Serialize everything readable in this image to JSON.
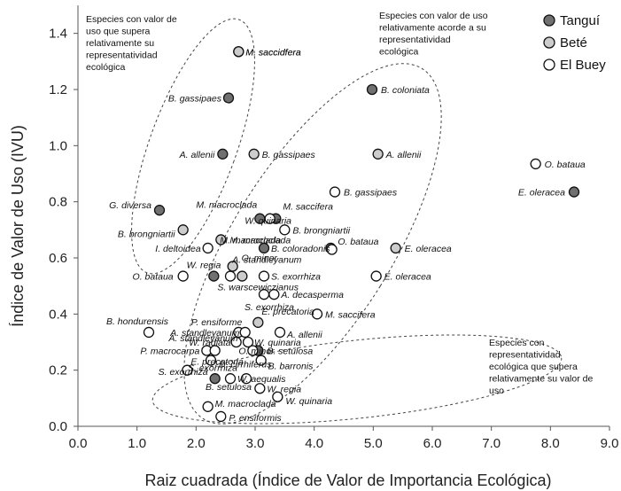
{
  "chart_data": {
    "type": "scatter",
    "xlabel": "Raiz cuadrada (Índice de Valor de Importancia Ecológica)",
    "ylabel": "Índice de Valor de Uso (IVU)",
    "xlim": [
      0,
      9
    ],
    "ylim": [
      0,
      1.5
    ],
    "x_ticks": [
      "0.0",
      "1.0",
      "2.0",
      "3.0",
      "4.0",
      "5.0",
      "6.0",
      "7.0",
      "8.0",
      "9.0"
    ],
    "y_ticks": [
      "0.0",
      "0.2",
      "0.4",
      "0.6",
      "0.8",
      "1.0",
      "1.2",
      "1.4"
    ],
    "grid": false,
    "legend_position": "top-right",
    "series": [
      {
        "name": "Tanguí",
        "color": "#707070",
        "points": [
          {
            "x": 2.72,
            "y": 1.335,
            "label": "M. saccidfera"
          },
          {
            "x": 2.55,
            "y": 1.17,
            "label": "B. gassipaes"
          },
          {
            "x": 4.98,
            "y": 1.2,
            "label": "B. coloniata"
          },
          {
            "x": 2.45,
            "y": 0.97,
            "label": "A. allenii"
          },
          {
            "x": 1.38,
            "y": 0.77,
            "label": "G. diversa"
          },
          {
            "x": 8.4,
            "y": 0.835,
            "label": "E. oleracea"
          },
          {
            "x": 3.08,
            "y": 0.74,
            "label": "M. macroclada"
          },
          {
            "x": 3.35,
            "y": 0.74,
            "label": "M. saccifera"
          },
          {
            "x": 3.15,
            "y": 0.635,
            "label": "B. coloradonis"
          },
          {
            "x": 4.28,
            "y": 0.635,
            "label": "O. bataua"
          },
          {
            "x": 2.3,
            "y": 0.535,
            "label": "W. regia"
          },
          {
            "x": 3.05,
            "y": 0.27,
            "label": "B. setulosa"
          },
          {
            "x": 2.32,
            "y": 0.17,
            "label": "S. exorrhiza"
          }
        ]
      },
      {
        "name": "Beté",
        "color": "#cccccc",
        "points": [
          {
            "x": 2.72,
            "y": 1.335,
            "label": "M. saccidfera"
          },
          {
            "x": 2.98,
            "y": 0.97,
            "label": "B. gassipaes"
          },
          {
            "x": 5.08,
            "y": 0.97,
            "label": "A. allenii"
          },
          {
            "x": 1.78,
            "y": 0.7,
            "label": "B. brongniartii"
          },
          {
            "x": 2.42,
            "y": 0.665,
            "label": "M. macroclada"
          },
          {
            "x": 2.62,
            "y": 0.57,
            "label": "O. minor"
          },
          {
            "x": 2.78,
            "y": 0.535,
            "label": "S. warscewiczianus"
          },
          {
            "x": 5.38,
            "y": 0.635,
            "label": "E. oleracea"
          },
          {
            "x": 3.05,
            "y": 0.37,
            "label": "E. precatoria"
          }
        ]
      },
      {
        "name": "El Buey",
        "color": "#ffffff",
        "points": [
          {
            "x": 4.35,
            "y": 0.835,
            "label": "B. gassipaes"
          },
          {
            "x": 7.75,
            "y": 0.935,
            "label": "O. bataua"
          },
          {
            "x": 3.25,
            "y": 0.74,
            "label": ""
          },
          {
            "x": 3.5,
            "y": 0.7,
            "label": "B. brongniartii"
          },
          {
            "x": 2.2,
            "y": 0.635,
            "label": "I. deltoidea"
          },
          {
            "x": 4.3,
            "y": 0.63,
            "label": ""
          },
          {
            "x": 1.78,
            "y": 0.535,
            "label": "O. bataua"
          },
          {
            "x": 2.58,
            "y": 0.535,
            "label": ""
          },
          {
            "x": 3.15,
            "y": 0.535,
            "label": "S. exorrhiza"
          },
          {
            "x": 5.05,
            "y": 0.535,
            "label": "E. oleracea"
          },
          {
            "x": 3.15,
            "y": 0.47,
            "label": "S. exorrhiza"
          },
          {
            "x": 3.32,
            "y": 0.47,
            "label": "A. decasperma"
          },
          {
            "x": 4.05,
            "y": 0.4,
            "label": "M. saccifera"
          },
          {
            "x": 1.2,
            "y": 0.335,
            "label": "B. hondurensis"
          },
          {
            "x": 2.72,
            "y": 0.335,
            "label": "P. ensiforme"
          },
          {
            "x": 2.83,
            "y": 0.335,
            "label": "A. standleyanum"
          },
          {
            "x": 3.42,
            "y": 0.335,
            "label": "A. allenii"
          },
          {
            "x": 2.68,
            "y": 0.3,
            "label": "W. radiata"
          },
          {
            "x": 2.88,
            "y": 0.3,
            "label": "W. quinaria"
          },
          {
            "x": 2.18,
            "y": 0.27,
            "label": "P. macrocarpa"
          },
          {
            "x": 2.32,
            "y": 0.27,
            "label": ""
          },
          {
            "x": 2.96,
            "y": 0.27,
            "label": "O. minor"
          },
          {
            "x": 2.25,
            "y": 0.235,
            "label": "D. cirrhiferus"
          },
          {
            "x": 3.1,
            "y": 0.235,
            "label": "B. barronis"
          },
          {
            "x": 1.85,
            "y": 0.2,
            "label": "E. precatoria"
          },
          {
            "x": 2.58,
            "y": 0.17,
            "label": "W. aequalis"
          },
          {
            "x": 2.85,
            "y": 0.17,
            "label": ""
          },
          {
            "x": 3.08,
            "y": 0.135,
            "label": "W. regia"
          },
          {
            "x": 3.38,
            "y": 0.105,
            "label": "W. quinaria"
          },
          {
            "x": 2.2,
            "y": 0.07,
            "label": "M. macroclada"
          },
          {
            "x": 2.42,
            "y": 0.035,
            "label": "P. ensiformis"
          }
        ]
      }
    ],
    "annotations": [
      {
        "text": [
          "Especies con valor de",
          "uso que supera",
          "relativamente  su",
          "representatividad",
          "ecológica"
        ]
      },
      {
        "text": [
          "Especies con valor de uso",
          "relativamente acorde a su",
          "representatividad",
          "ecológica"
        ]
      },
      {
        "text": [
          "Especies con",
          "representatividad",
          "ecológica que supera",
          "relativamente su valor de",
          "uso"
        ]
      }
    ],
    "extra_labels": [
      {
        "text": "W. quinaria",
        "x": 3.22,
        "y": 0.735
      },
      {
        "text": "A. standleyanum",
        "x": 3.2,
        "y": 0.595
      },
      {
        "text": "S. exorrhiza",
        "x": 2.28,
        "y": 0.21
      },
      {
        "text": "B. setulosa",
        "x": 2.55,
        "y": 0.142
      },
      {
        "text": "A. standleyanum",
        "x": 2.15,
        "y": 0.335
      },
      {
        "text": "M. macroclada",
        "x": 2.92,
        "y": 0.665
      }
    ]
  }
}
